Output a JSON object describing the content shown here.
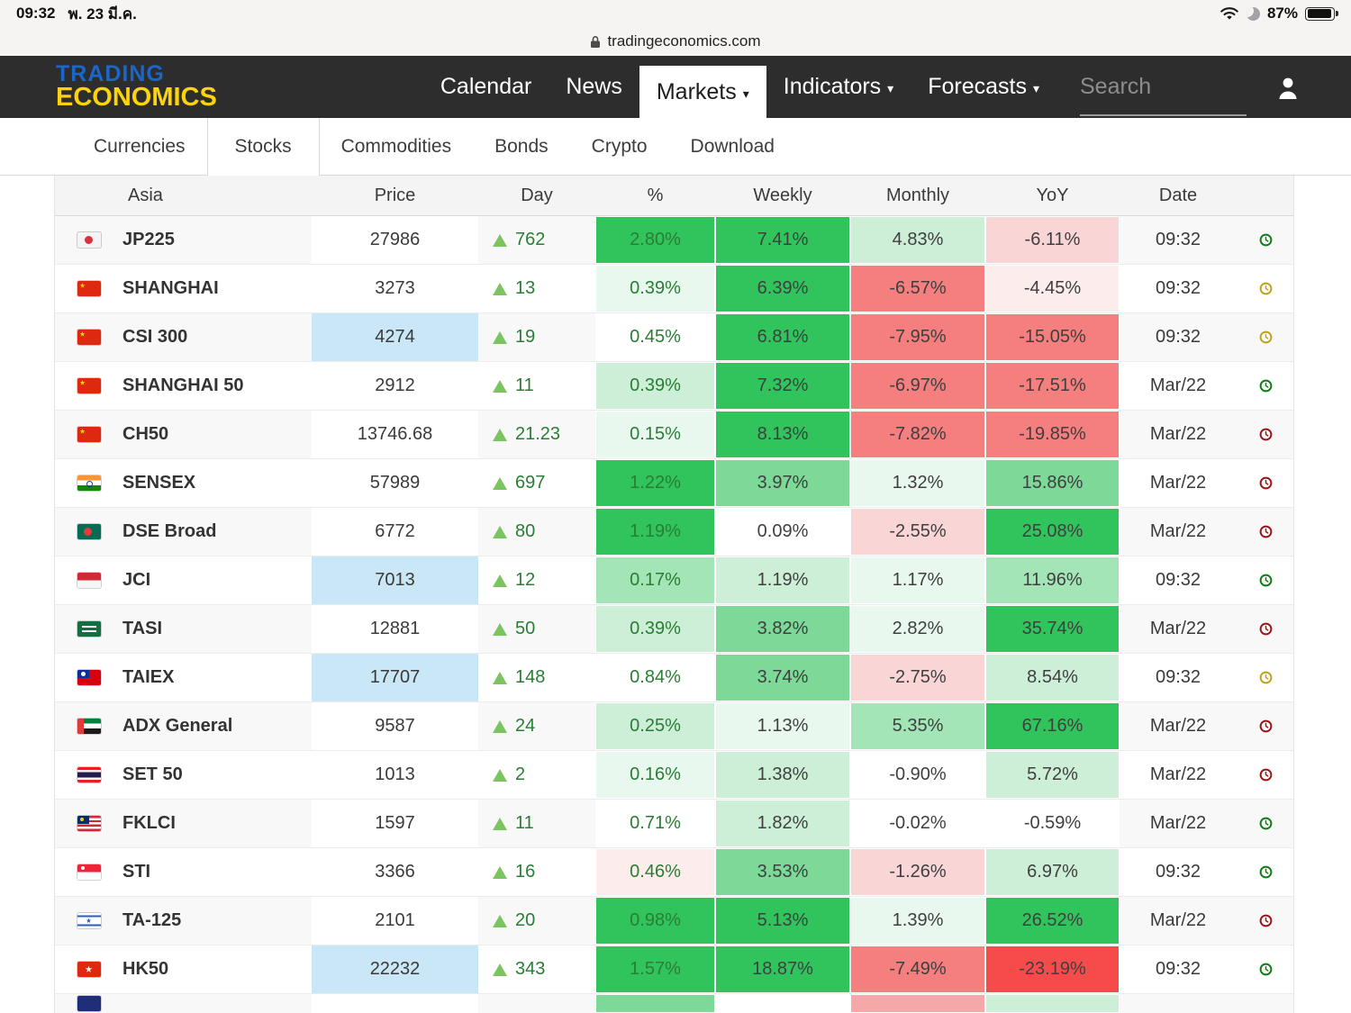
{
  "status_bar": {
    "time": "09:32",
    "date": "พ. 23 มี.ค.",
    "battery": "87%"
  },
  "url_bar": {
    "domain": "tradingeconomics.com"
  },
  "nav": {
    "logo_line1": "TRADING",
    "logo_line2": "ECONOMICS",
    "items": [
      {
        "label": "Calendar",
        "dropdown": false,
        "active": false
      },
      {
        "label": "News",
        "dropdown": false,
        "active": false
      },
      {
        "label": "Markets",
        "dropdown": true,
        "active": true
      },
      {
        "label": "Indicators",
        "dropdown": true,
        "active": false
      },
      {
        "label": "Forecasts",
        "dropdown": true,
        "active": false
      }
    ],
    "search_placeholder": "Search"
  },
  "subnav": {
    "items": [
      {
        "label": "Currencies",
        "active": false
      },
      {
        "label": "Stocks",
        "active": true
      },
      {
        "label": "Commodities",
        "active": false
      },
      {
        "label": "Bonds",
        "active": false
      },
      {
        "label": "Crypto",
        "active": false
      },
      {
        "label": "Download",
        "active": false
      }
    ]
  },
  "table": {
    "headers": [
      "Asia",
      "Price",
      "Day",
      "%",
      "Weekly",
      "Monthly",
      "YoY",
      "Date"
    ],
    "rows": [
      {
        "flag": "jp",
        "name": "JP225",
        "price": "27986",
        "price_hl": false,
        "day": "762",
        "pct": "2.80%",
        "weekly": "7.41%",
        "monthly": "4.83%",
        "yoy": "-6.11%",
        "date": "09:32",
        "clock": "green",
        "bg": [
          "g5",
          "g5",
          "g2",
          "r2"
        ]
      },
      {
        "flag": "cn",
        "name": "SHANGHAI",
        "price": "3273",
        "price_hl": false,
        "day": "13",
        "pct": "0.39%",
        "weekly": "6.39%",
        "monthly": "-6.57%",
        "yoy": "-4.45%",
        "date": "09:32",
        "clock": "yellow",
        "bg": [
          "g1",
          "g5",
          "r4",
          "r1"
        ]
      },
      {
        "flag": "cn",
        "name": "CSI 300",
        "price": "4274",
        "price_hl": true,
        "day": "19",
        "pct": "0.45%",
        "weekly": "6.81%",
        "monthly": "-7.95%",
        "yoy": "-15.05%",
        "date": "09:32",
        "clock": "yellow",
        "bg": [
          "w",
          "g5",
          "r4",
          "r4"
        ]
      },
      {
        "flag": "cn",
        "name": "SHANGHAI 50",
        "price": "2912",
        "price_hl": false,
        "day": "11",
        "pct": "0.39%",
        "weekly": "7.32%",
        "monthly": "-6.97%",
        "yoy": "-17.51%",
        "date": "Mar/22",
        "clock": "green",
        "bg": [
          "g2",
          "g5",
          "r4",
          "r4"
        ]
      },
      {
        "flag": "cn",
        "name": "CH50",
        "price": "13746.68",
        "price_hl": false,
        "day": "21.23",
        "pct": "0.15%",
        "weekly": "8.13%",
        "monthly": "-7.82%",
        "yoy": "-19.85%",
        "date": "Mar/22",
        "clock": "red",
        "bg": [
          "g1",
          "g5",
          "r4",
          "r4"
        ]
      },
      {
        "flag": "in",
        "name": "SENSEX",
        "price": "57989",
        "price_hl": false,
        "day": "697",
        "pct": "1.22%",
        "weekly": "3.97%",
        "monthly": "1.32%",
        "yoy": "15.86%",
        "date": "Mar/22",
        "clock": "red",
        "bg": [
          "g5",
          "g4",
          "g1",
          "g4"
        ]
      },
      {
        "flag": "bd",
        "name": "DSE Broad",
        "price": "6772",
        "price_hl": false,
        "day": "80",
        "pct": "1.19%",
        "weekly": "0.09%",
        "monthly": "-2.55%",
        "yoy": "25.08%",
        "date": "Mar/22",
        "clock": "red",
        "bg": [
          "g5",
          "w",
          "r2",
          "g5"
        ]
      },
      {
        "flag": "id",
        "name": "JCI",
        "price": "7013",
        "price_hl": true,
        "day": "12",
        "pct": "0.17%",
        "weekly": "1.19%",
        "monthly": "1.17%",
        "yoy": "11.96%",
        "date": "09:32",
        "clock": "green",
        "bg": [
          "g3",
          "g2",
          "g1",
          "g3"
        ]
      },
      {
        "flag": "sa",
        "name": "TASI",
        "price": "12881",
        "price_hl": false,
        "day": "50",
        "pct": "0.39%",
        "weekly": "3.82%",
        "monthly": "2.82%",
        "yoy": "35.74%",
        "date": "Mar/22",
        "clock": "red",
        "bg": [
          "g2",
          "g4",
          "g1",
          "g5"
        ]
      },
      {
        "flag": "tw",
        "name": "TAIEX",
        "price": "17707",
        "price_hl": true,
        "day": "148",
        "pct": "0.84%",
        "weekly": "3.74%",
        "monthly": "-2.75%",
        "yoy": "8.54%",
        "date": "09:32",
        "clock": "yellow",
        "bg": [
          "w",
          "g4",
          "r2",
          "g2"
        ]
      },
      {
        "flag": "ae",
        "name": "ADX General",
        "price": "9587",
        "price_hl": false,
        "day": "24",
        "pct": "0.25%",
        "weekly": "1.13%",
        "monthly": "5.35%",
        "yoy": "67.16%",
        "date": "Mar/22",
        "clock": "red",
        "bg": [
          "g2",
          "g1",
          "g3",
          "g5"
        ]
      },
      {
        "flag": "th",
        "name": "SET 50",
        "price": "1013",
        "price_hl": false,
        "day": "2",
        "pct": "0.16%",
        "weekly": "1.38%",
        "monthly": "-0.90%",
        "yoy": "5.72%",
        "date": "Mar/22",
        "clock": "red",
        "bg": [
          "g1",
          "g2",
          "w",
          "g2"
        ]
      },
      {
        "flag": "my",
        "name": "FKLCI",
        "price": "1597",
        "price_hl": false,
        "day": "11",
        "pct": "0.71%",
        "weekly": "1.82%",
        "monthly": "-0.02%",
        "yoy": "-0.59%",
        "date": "Mar/22",
        "clock": "green",
        "bg": [
          "w",
          "g2",
          "w",
          "w"
        ]
      },
      {
        "flag": "sg",
        "name": "STI",
        "price": "3366",
        "price_hl": false,
        "day": "16",
        "pct": "0.46%",
        "weekly": "3.53%",
        "monthly": "-1.26%",
        "yoy": "6.97%",
        "date": "09:32",
        "clock": "green",
        "bg": [
          "r1",
          "g4",
          "r2",
          "g2"
        ]
      },
      {
        "flag": "il",
        "name": "TA-125",
        "price": "2101",
        "price_hl": false,
        "day": "20",
        "pct": "0.98%",
        "weekly": "5.13%",
        "monthly": "1.39%",
        "yoy": "26.52%",
        "date": "Mar/22",
        "clock": "red",
        "bg": [
          "g5",
          "g5",
          "g1",
          "g5"
        ]
      },
      {
        "flag": "hk",
        "name": "HK50",
        "price": "22232",
        "price_hl": true,
        "day": "343",
        "pct": "1.57%",
        "weekly": "18.87%",
        "monthly": "-7.49%",
        "yoy": "-23.19%",
        "date": "09:32",
        "clock": "green",
        "bg": [
          "g5",
          "g5",
          "r4",
          "r5"
        ]
      }
    ],
    "partial_row": {
      "flag": "kr",
      "bg": [
        "g4",
        "w",
        "r3",
        "g2"
      ]
    }
  },
  "colors": {
    "logo_blue": "#1b66c9",
    "logo_yellow": "#fdd30f",
    "nav_bg": "#2e2d2d",
    "positive_text": "#2a7d35",
    "triangle_green": "#7cc45f",
    "price_highlight": "#cae7f7",
    "heat": {
      "g1": "#e9f8ee",
      "g2": "#cdefd8",
      "g3": "#a4e5b7",
      "g4": "#7cd998",
      "g5": "#31c45c",
      "r1": "#fdecec",
      "r2": "#fad5d6",
      "r3": "#f6a7a7",
      "r4": "#f57e7e",
      "r5": "#f64b4b",
      "w": "#ffffff"
    },
    "clock": {
      "green": "#0f7d12",
      "yellow": "#c2a118",
      "red": "#9e1414"
    }
  }
}
